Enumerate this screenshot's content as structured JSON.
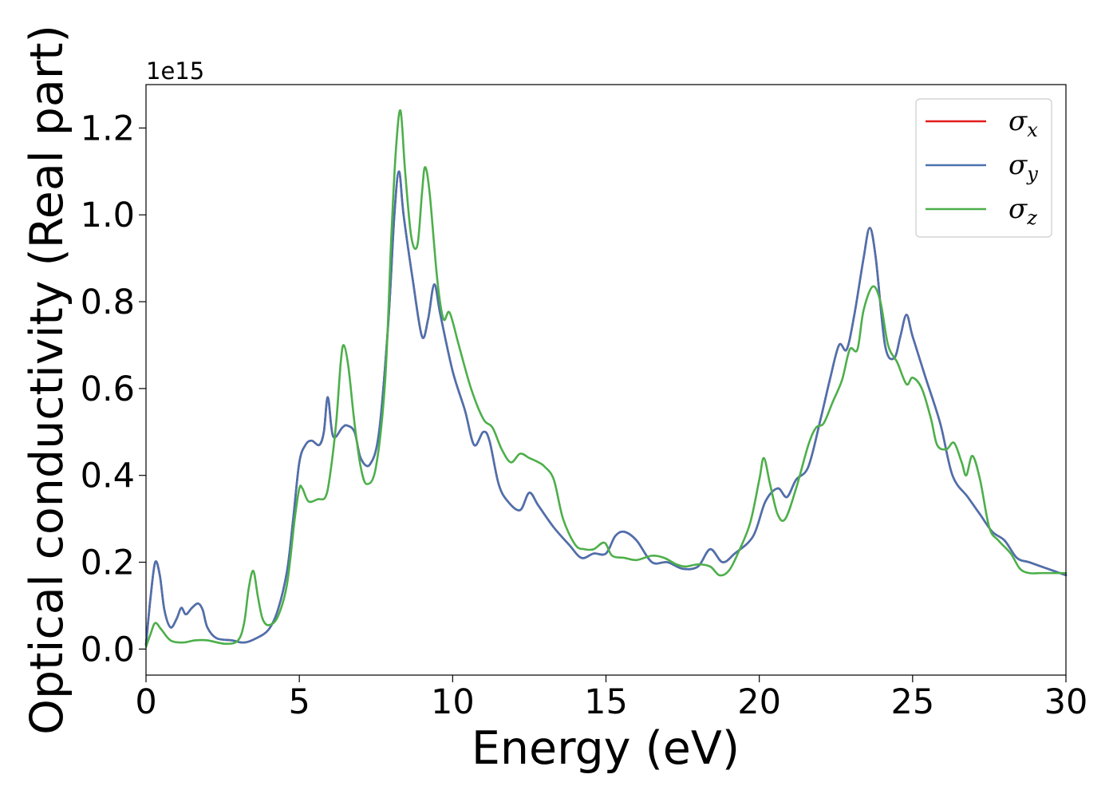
{
  "chart_data": {
    "type": "line",
    "xlabel": "Energy (eV)",
    "ylabel": "Optical conductivity (Real part)",
    "offset_text": "1e15",
    "xlim": [
      0,
      30
    ],
    "ylim": [
      -0.06,
      1.3
    ],
    "y_scale_factor": 1000000000000000.0,
    "grid": false,
    "legend_position": "top-right",
    "x_ticks": [
      0,
      5,
      10,
      15,
      20,
      25,
      30
    ],
    "x_tick_labels": [
      "0",
      "5",
      "10",
      "15",
      "20",
      "25",
      "30"
    ],
    "y_ticks": [
      0.0,
      0.2,
      0.4,
      0.6,
      0.8,
      1.0,
      1.2
    ],
    "y_tick_labels": [
      "0.0",
      "0.2",
      "0.4",
      "0.6",
      "0.8",
      "1.0",
      "1.2"
    ],
    "series": [
      {
        "name": "σ_x",
        "legend_main": "σ",
        "legend_sub": "x",
        "color": "#e41a1c",
        "points": [
          [
            0,
            0.01
          ],
          [
            0.15,
            0.12
          ],
          [
            0.3,
            0.2
          ],
          [
            0.45,
            0.17
          ],
          [
            0.6,
            0.09
          ],
          [
            0.8,
            0.05
          ],
          [
            1.0,
            0.07
          ],
          [
            1.15,
            0.095
          ],
          [
            1.3,
            0.08
          ],
          [
            1.5,
            0.095
          ],
          [
            1.7,
            0.105
          ],
          [
            1.85,
            0.09
          ],
          [
            2.0,
            0.05
          ],
          [
            2.3,
            0.025
          ],
          [
            2.8,
            0.02
          ],
          [
            3.2,
            0.015
          ],
          [
            3.6,
            0.025
          ],
          [
            4.0,
            0.045
          ],
          [
            4.3,
            0.09
          ],
          [
            4.6,
            0.18
          ],
          [
            4.8,
            0.3
          ],
          [
            5.0,
            0.43
          ],
          [
            5.2,
            0.47
          ],
          [
            5.4,
            0.48
          ],
          [
            5.65,
            0.47
          ],
          [
            5.8,
            0.5
          ],
          [
            5.93,
            0.58
          ],
          [
            6.1,
            0.49
          ],
          [
            6.4,
            0.51
          ],
          [
            6.55,
            0.515
          ],
          [
            6.8,
            0.5
          ],
          [
            7.0,
            0.44
          ],
          [
            7.3,
            0.425
          ],
          [
            7.6,
            0.5
          ],
          [
            7.9,
            0.75
          ],
          [
            8.1,
            1.0
          ],
          [
            8.25,
            1.1
          ],
          [
            8.4,
            1.0
          ],
          [
            8.7,
            0.85
          ],
          [
            9.0,
            0.72
          ],
          [
            9.2,
            0.76
          ],
          [
            9.4,
            0.84
          ],
          [
            9.6,
            0.77
          ],
          [
            10.0,
            0.64
          ],
          [
            10.4,
            0.55
          ],
          [
            10.7,
            0.47
          ],
          [
            11.0,
            0.5
          ],
          [
            11.2,
            0.48
          ],
          [
            11.5,
            0.38
          ],
          [
            11.8,
            0.34
          ],
          [
            12.2,
            0.32
          ],
          [
            12.5,
            0.36
          ],
          [
            12.8,
            0.33
          ],
          [
            13.3,
            0.28
          ],
          [
            13.8,
            0.24
          ],
          [
            14.2,
            0.21
          ],
          [
            14.6,
            0.22
          ],
          [
            15.0,
            0.22
          ],
          [
            15.3,
            0.26
          ],
          [
            15.6,
            0.27
          ],
          [
            16.0,
            0.25
          ],
          [
            16.5,
            0.2
          ],
          [
            17.0,
            0.2
          ],
          [
            17.5,
            0.185
          ],
          [
            18.0,
            0.19
          ],
          [
            18.4,
            0.23
          ],
          [
            18.8,
            0.2
          ],
          [
            19.2,
            0.22
          ],
          [
            19.8,
            0.26
          ],
          [
            20.2,
            0.34
          ],
          [
            20.6,
            0.37
          ],
          [
            20.9,
            0.35
          ],
          [
            21.2,
            0.39
          ],
          [
            21.6,
            0.42
          ],
          [
            22.0,
            0.53
          ],
          [
            22.3,
            0.62
          ],
          [
            22.6,
            0.7
          ],
          [
            22.85,
            0.69
          ],
          [
            23.1,
            0.77
          ],
          [
            23.4,
            0.9
          ],
          [
            23.6,
            0.97
          ],
          [
            23.8,
            0.9
          ],
          [
            24.1,
            0.7
          ],
          [
            24.4,
            0.67
          ],
          [
            24.6,
            0.72
          ],
          [
            24.8,
            0.77
          ],
          [
            25.0,
            0.72
          ],
          [
            25.4,
            0.63
          ],
          [
            25.9,
            0.52
          ],
          [
            26.3,
            0.4
          ],
          [
            26.8,
            0.35
          ],
          [
            27.2,
            0.31
          ],
          [
            27.6,
            0.27
          ],
          [
            28.0,
            0.25
          ],
          [
            28.4,
            0.21
          ],
          [
            28.8,
            0.2
          ],
          [
            29.2,
            0.19
          ],
          [
            29.6,
            0.18
          ],
          [
            30.0,
            0.17
          ]
        ]
      },
      {
        "name": "σ_y",
        "legend_main": "σ",
        "legend_sub": "y",
        "color": "#4a72b0",
        "points": [
          [
            0,
            0.01
          ],
          [
            0.15,
            0.12
          ],
          [
            0.3,
            0.2
          ],
          [
            0.45,
            0.17
          ],
          [
            0.6,
            0.09
          ],
          [
            0.8,
            0.05
          ],
          [
            1.0,
            0.07
          ],
          [
            1.15,
            0.095
          ],
          [
            1.3,
            0.08
          ],
          [
            1.5,
            0.095
          ],
          [
            1.7,
            0.105
          ],
          [
            1.85,
            0.09
          ],
          [
            2.0,
            0.05
          ],
          [
            2.3,
            0.025
          ],
          [
            2.8,
            0.02
          ],
          [
            3.2,
            0.015
          ],
          [
            3.6,
            0.025
          ],
          [
            4.0,
            0.045
          ],
          [
            4.3,
            0.09
          ],
          [
            4.6,
            0.18
          ],
          [
            4.8,
            0.3
          ],
          [
            5.0,
            0.43
          ],
          [
            5.2,
            0.47
          ],
          [
            5.4,
            0.48
          ],
          [
            5.65,
            0.47
          ],
          [
            5.8,
            0.5
          ],
          [
            5.93,
            0.58
          ],
          [
            6.1,
            0.49
          ],
          [
            6.4,
            0.51
          ],
          [
            6.55,
            0.515
          ],
          [
            6.8,
            0.5
          ],
          [
            7.0,
            0.44
          ],
          [
            7.3,
            0.425
          ],
          [
            7.6,
            0.5
          ],
          [
            7.9,
            0.75
          ],
          [
            8.1,
            1.0
          ],
          [
            8.25,
            1.1
          ],
          [
            8.4,
            1.0
          ],
          [
            8.7,
            0.85
          ],
          [
            9.0,
            0.72
          ],
          [
            9.2,
            0.76
          ],
          [
            9.4,
            0.84
          ],
          [
            9.6,
            0.77
          ],
          [
            10.0,
            0.64
          ],
          [
            10.4,
            0.55
          ],
          [
            10.7,
            0.47
          ],
          [
            11.0,
            0.5
          ],
          [
            11.2,
            0.48
          ],
          [
            11.5,
            0.38
          ],
          [
            11.8,
            0.34
          ],
          [
            12.2,
            0.32
          ],
          [
            12.5,
            0.36
          ],
          [
            12.8,
            0.33
          ],
          [
            13.3,
            0.28
          ],
          [
            13.8,
            0.24
          ],
          [
            14.2,
            0.21
          ],
          [
            14.6,
            0.22
          ],
          [
            15.0,
            0.22
          ],
          [
            15.3,
            0.26
          ],
          [
            15.6,
            0.27
          ],
          [
            16.0,
            0.25
          ],
          [
            16.5,
            0.2
          ],
          [
            17.0,
            0.2
          ],
          [
            17.5,
            0.185
          ],
          [
            18.0,
            0.19
          ],
          [
            18.4,
            0.23
          ],
          [
            18.8,
            0.2
          ],
          [
            19.2,
            0.22
          ],
          [
            19.8,
            0.26
          ],
          [
            20.2,
            0.34
          ],
          [
            20.6,
            0.37
          ],
          [
            20.9,
            0.35
          ],
          [
            21.2,
            0.39
          ],
          [
            21.6,
            0.42
          ],
          [
            22.0,
            0.53
          ],
          [
            22.3,
            0.62
          ],
          [
            22.6,
            0.7
          ],
          [
            22.85,
            0.69
          ],
          [
            23.1,
            0.77
          ],
          [
            23.4,
            0.9
          ],
          [
            23.6,
            0.97
          ],
          [
            23.8,
            0.9
          ],
          [
            24.1,
            0.7
          ],
          [
            24.4,
            0.67
          ],
          [
            24.6,
            0.72
          ],
          [
            24.8,
            0.77
          ],
          [
            25.0,
            0.72
          ],
          [
            25.4,
            0.63
          ],
          [
            25.9,
            0.52
          ],
          [
            26.3,
            0.4
          ],
          [
            26.8,
            0.35
          ],
          [
            27.2,
            0.31
          ],
          [
            27.6,
            0.27
          ],
          [
            28.0,
            0.25
          ],
          [
            28.4,
            0.21
          ],
          [
            28.8,
            0.2
          ],
          [
            29.2,
            0.19
          ],
          [
            29.6,
            0.18
          ],
          [
            30.0,
            0.17
          ]
        ]
      },
      {
        "name": "σ_z",
        "legend_main": "σ",
        "legend_sub": "z",
        "color": "#4daf4a",
        "points": [
          [
            0,
            0.005
          ],
          [
            0.15,
            0.035
          ],
          [
            0.3,
            0.06
          ],
          [
            0.5,
            0.045
          ],
          [
            0.8,
            0.02
          ],
          [
            1.2,
            0.015
          ],
          [
            1.6,
            0.02
          ],
          [
            2.0,
            0.02
          ],
          [
            2.6,
            0.012
          ],
          [
            3.0,
            0.02
          ],
          [
            3.2,
            0.06
          ],
          [
            3.35,
            0.14
          ],
          [
            3.5,
            0.18
          ],
          [
            3.65,
            0.12
          ],
          [
            3.8,
            0.07
          ],
          [
            4.0,
            0.055
          ],
          [
            4.3,
            0.075
          ],
          [
            4.6,
            0.15
          ],
          [
            4.85,
            0.3
          ],
          [
            5.0,
            0.37
          ],
          [
            5.1,
            0.37
          ],
          [
            5.3,
            0.34
          ],
          [
            5.6,
            0.345
          ],
          [
            5.85,
            0.35
          ],
          [
            6.0,
            0.4
          ],
          [
            6.2,
            0.52
          ],
          [
            6.35,
            0.66
          ],
          [
            6.45,
            0.7
          ],
          [
            6.6,
            0.65
          ],
          [
            6.8,
            0.52
          ],
          [
            7.0,
            0.42
          ],
          [
            7.2,
            0.38
          ],
          [
            7.5,
            0.42
          ],
          [
            7.8,
            0.62
          ],
          [
            8.0,
            0.95
          ],
          [
            8.15,
            1.15
          ],
          [
            8.3,
            1.24
          ],
          [
            8.45,
            1.1
          ],
          [
            8.65,
            0.95
          ],
          [
            8.85,
            0.93
          ],
          [
            9.0,
            1.05
          ],
          [
            9.1,
            1.11
          ],
          [
            9.25,
            1.05
          ],
          [
            9.5,
            0.85
          ],
          [
            9.7,
            0.76
          ],
          [
            9.9,
            0.775
          ],
          [
            10.2,
            0.7
          ],
          [
            10.6,
            0.6
          ],
          [
            11.0,
            0.53
          ],
          [
            11.3,
            0.51
          ],
          [
            11.6,
            0.46
          ],
          [
            11.9,
            0.43
          ],
          [
            12.2,
            0.45
          ],
          [
            12.5,
            0.44
          ],
          [
            12.8,
            0.43
          ],
          [
            13.0,
            0.42
          ],
          [
            13.3,
            0.39
          ],
          [
            13.6,
            0.3
          ],
          [
            14.0,
            0.24
          ],
          [
            14.3,
            0.23
          ],
          [
            14.6,
            0.23
          ],
          [
            14.95,
            0.245
          ],
          [
            15.2,
            0.215
          ],
          [
            15.6,
            0.21
          ],
          [
            16.0,
            0.205
          ],
          [
            16.5,
            0.215
          ],
          [
            16.9,
            0.21
          ],
          [
            17.3,
            0.195
          ],
          [
            17.6,
            0.19
          ],
          [
            18.0,
            0.195
          ],
          [
            18.4,
            0.19
          ],
          [
            18.7,
            0.17
          ],
          [
            19.0,
            0.18
          ],
          [
            19.3,
            0.22
          ],
          [
            19.7,
            0.29
          ],
          [
            20.0,
            0.39
          ],
          [
            20.15,
            0.44
          ],
          [
            20.35,
            0.38
          ],
          [
            20.6,
            0.31
          ],
          [
            20.85,
            0.3
          ],
          [
            21.2,
            0.37
          ],
          [
            21.6,
            0.47
          ],
          [
            21.85,
            0.51
          ],
          [
            22.1,
            0.52
          ],
          [
            22.4,
            0.57
          ],
          [
            22.7,
            0.62
          ],
          [
            22.95,
            0.69
          ],
          [
            23.2,
            0.69
          ],
          [
            23.4,
            0.78
          ],
          [
            23.7,
            0.835
          ],
          [
            23.95,
            0.8
          ],
          [
            24.2,
            0.7
          ],
          [
            24.5,
            0.66
          ],
          [
            24.8,
            0.61
          ],
          [
            25.0,
            0.625
          ],
          [
            25.3,
            0.6
          ],
          [
            25.6,
            0.53
          ],
          [
            25.8,
            0.47
          ],
          [
            26.1,
            0.46
          ],
          [
            26.35,
            0.475
          ],
          [
            26.6,
            0.43
          ],
          [
            26.75,
            0.4
          ],
          [
            26.95,
            0.445
          ],
          [
            27.2,
            0.39
          ],
          [
            27.5,
            0.28
          ],
          [
            27.8,
            0.25
          ],
          [
            28.2,
            0.22
          ],
          [
            28.5,
            0.185
          ],
          [
            28.8,
            0.175
          ],
          [
            29.2,
            0.175
          ],
          [
            29.6,
            0.175
          ],
          [
            30.0,
            0.175
          ]
        ]
      }
    ]
  }
}
